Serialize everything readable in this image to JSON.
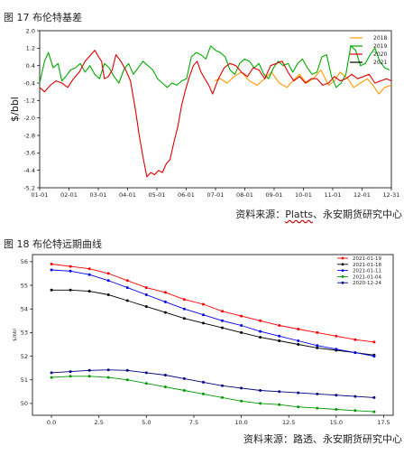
{
  "figure1": {
    "title": "图 17 布伦特基差",
    "source_prefix": "资料来源：",
    "source_name": "Platts",
    "source_suffix": "、永安期货研究中心"
  },
  "figure2": {
    "title": "图 18 布伦特远期曲线",
    "source": "资料来源：路透、永安期货研究中心"
  },
  "chart_data": [
    {
      "type": "line",
      "ylabel": "$/bbl",
      "xlabel": "",
      "ylim": [
        -5.2,
        2.0
      ],
      "yticks": [
        "2.0",
        "1.2",
        "0.4",
        "-0.4",
        "-1.2",
        "-2.0",
        "-2.8",
        "-3.6",
        "-4.4",
        "-5.2"
      ],
      "xticks": [
        "01-01",
        "02-01",
        "03-01",
        "04-01",
        "05-01",
        "06-01",
        "07-01",
        "08-01",
        "09-01",
        "10-01",
        "11-01",
        "12-01",
        "12-31"
      ],
      "grid": false,
      "legend_position": "top-right",
      "series": [
        {
          "name": "2018",
          "color": "#ff9900",
          "x": [
            182,
            188,
            195,
            202,
            210,
            218,
            226,
            234,
            241,
            249,
            257,
            263,
            270,
            277,
            284,
            292,
            300,
            306,
            312,
            320,
            326,
            333,
            340,
            346,
            352,
            358,
            365
          ],
          "values": [
            -0.3,
            -0.2,
            -0.4,
            -0.1,
            0.1,
            -0.3,
            -0.5,
            -0.2,
            0.1,
            -0.4,
            -0.6,
            -0.3,
            0.0,
            -0.4,
            -0.2,
            0.2,
            -0.5,
            -0.3,
            0.1,
            -0.2,
            -0.6,
            -0.4,
            -0.2,
            -0.5,
            -0.9,
            -0.6,
            -0.5
          ]
        },
        {
          "name": "2019",
          "color": "#00aa00",
          "x": [
            1,
            6,
            10,
            15,
            20,
            24,
            28,
            33,
            38,
            43,
            48,
            53,
            58,
            63,
            68,
            73,
            78,
            83,
            88,
            93,
            98,
            103,
            108,
            113,
            118,
            123,
            128,
            133,
            138,
            143,
            148,
            153,
            158,
            163,
            168,
            173,
            178,
            183,
            188,
            193,
            198,
            203,
            208,
            213,
            218,
            223,
            228,
            233,
            238,
            243,
            248,
            253,
            258,
            263,
            268,
            273,
            278,
            283,
            288,
            293,
            298,
            303,
            308,
            313,
            318,
            323,
            328,
            333,
            338,
            343,
            348,
            353,
            358,
            363
          ],
          "values": [
            -0.4,
            0.6,
            1.0,
            0.3,
            0.5,
            -0.3,
            -0.1,
            0.2,
            0.3,
            0.5,
            0.1,
            0.4,
            0.0,
            -0.2,
            0.5,
            0.3,
            -0.1,
            -0.4,
            0.2,
            0.5,
            0.0,
            0.3,
            0.6,
            0.4,
            0.2,
            -0.2,
            -0.4,
            -0.6,
            -0.4,
            -0.5,
            -0.3,
            -0.2,
            0.8,
            1.0,
            0.9,
            0.7,
            1.3,
            1.1,
            1.0,
            0.8,
            0.2,
            0.0,
            0.5,
            0.7,
            0.6,
            0.3,
            0.5,
            0.0,
            -0.2,
            0.3,
            0.6,
            0.4,
            0.5,
            0.1,
            0.5,
            0.7,
            0.3,
            0.0,
            0.1,
            0.8,
            0.9,
            -0.1,
            -0.6,
            -0.4,
            0.0,
            1.3,
            1.1,
            0.4,
            0.5,
            0.9,
            1.2,
            0.6,
            0.3,
            0.2
          ]
        },
        {
          "name": "2020",
          "color": "#dd0000",
          "x": [
            1,
            6,
            12,
            18,
            24,
            30,
            36,
            42,
            48,
            54,
            58,
            62,
            65,
            68,
            72,
            76,
            80,
            85,
            90,
            95,
            100,
            104,
            108,
            112,
            116,
            120,
            124,
            128,
            132,
            136,
            140,
            144,
            148,
            152,
            156,
            160,
            164,
            168,
            172,
            176,
            180,
            186,
            192,
            198,
            204,
            210,
            216,
            222,
            228,
            234,
            240,
            246,
            252,
            258,
            264,
            270,
            276,
            282,
            288,
            294,
            300,
            306,
            312,
            318,
            324,
            330,
            336,
            342,
            348,
            354,
            360,
            365
          ],
          "values": [
            -0.6,
            -0.8,
            -0.5,
            -0.3,
            -0.4,
            -0.6,
            -0.2,
            0.1,
            0.6,
            0.9,
            1.1,
            0.8,
            0.6,
            -0.2,
            -0.1,
            0.2,
            0.9,
            0.6,
            0.2,
            -0.3,
            -1.6,
            -2.8,
            -3.8,
            -4.7,
            -4.5,
            -4.6,
            -4.4,
            -4.5,
            -4.1,
            -3.9,
            -3.1,
            -2.4,
            -1.4,
            -0.7,
            -0.1,
            0.4,
            0.6,
            0.1,
            -0.2,
            -0.5,
            -0.9,
            -0.2,
            0.3,
            0.5,
            0.4,
            0.1,
            -0.1,
            0.3,
            0.2,
            -0.2,
            0.4,
            0.5,
            0.6,
            0.1,
            -0.3,
            -0.1,
            -0.4,
            -0.2,
            -0.2,
            -0.5,
            -0.4,
            -0.1,
            -0.3,
            -0.2,
            0.0,
            -0.2,
            -0.1,
            0.0,
            -0.4,
            -0.3,
            -0.2,
            -0.3
          ]
        },
        {
          "name": "2021",
          "color": "#000000",
          "x": [],
          "values": []
        }
      ]
    },
    {
      "type": "line",
      "ylabel": "$/bbl",
      "xlabel": "",
      "xlim": [
        -1,
        18
      ],
      "ylim": [
        49.5,
        56.3
      ],
      "yticks": [
        50,
        51,
        52,
        53,
        54,
        55,
        56
      ],
      "xticks": [
        "0.0",
        "2.5",
        "5.0",
        "7.5",
        "10.0",
        "12.5",
        "15.0",
        "17.5"
      ],
      "xtick_values": [
        0,
        2.5,
        5,
        7.5,
        10,
        12.5,
        15,
        17.5
      ],
      "grid": false,
      "legend_position": "top-right",
      "x": [
        0,
        1,
        2,
        3,
        4,
        5,
        6,
        7,
        8,
        9,
        10,
        11,
        12,
        13,
        14,
        15,
        16,
        17
      ],
      "series": [
        {
          "name": "2021-01-19",
          "color": "#ff0000",
          "values": [
            55.9,
            55.8,
            55.7,
            55.5,
            55.2,
            54.9,
            54.7,
            54.4,
            54.2,
            53.9,
            53.7,
            53.5,
            53.3,
            53.15,
            53.0,
            52.85,
            52.7,
            52.6
          ]
        },
        {
          "name": "2021-01-18",
          "color": "#000000",
          "values": [
            54.8,
            54.8,
            54.75,
            54.6,
            54.35,
            54.1,
            53.85,
            53.6,
            53.4,
            53.2,
            53.0,
            52.8,
            52.65,
            52.5,
            52.35,
            52.25,
            52.15,
            52.05
          ]
        },
        {
          "name": "2021-01-11",
          "color": "#0000ee",
          "values": [
            55.65,
            55.6,
            55.45,
            55.2,
            54.9,
            54.6,
            54.3,
            54.0,
            53.75,
            53.5,
            53.3,
            53.05,
            52.85,
            52.65,
            52.45,
            52.3,
            52.15,
            52.0
          ]
        },
        {
          "name": "2021-01-04",
          "color": "#009900",
          "values": [
            51.1,
            51.15,
            51.15,
            51.1,
            51.0,
            50.85,
            50.7,
            50.55,
            50.4,
            50.25,
            50.1,
            50.0,
            49.95,
            49.85,
            49.8,
            49.75,
            49.7,
            49.65
          ]
        },
        {
          "name": "2020-12-24",
          "color": "#000080",
          "values": [
            51.3,
            51.35,
            51.4,
            51.42,
            51.4,
            51.3,
            51.2,
            51.05,
            50.9,
            50.75,
            50.65,
            50.55,
            50.5,
            50.45,
            50.4,
            50.35,
            50.3,
            50.25
          ]
        }
      ]
    }
  ]
}
